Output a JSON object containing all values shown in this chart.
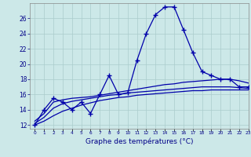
{
  "xlabel": "Graphe des températures (°C)",
  "background_color": "#cce8e8",
  "grid_color": "#aacccc",
  "line_color": "#0000aa",
  "hours": [
    0,
    1,
    2,
    3,
    4,
    5,
    6,
    7,
    8,
    9,
    10,
    11,
    12,
    13,
    14,
    15,
    16,
    17,
    18,
    19,
    20,
    21,
    22,
    23
  ],
  "temp_main": [
    12,
    14,
    15.5,
    15,
    14,
    15,
    13.5,
    16,
    18.5,
    16,
    16.2,
    20.5,
    24,
    26.5,
    27.5,
    27.5,
    24.5,
    21.5,
    19,
    18.5,
    18,
    18,
    17,
    17
  ],
  "temp_smooth1": [
    12.5,
    13.5,
    15.0,
    15.3,
    15.5,
    15.6,
    15.7,
    15.9,
    16.1,
    16.3,
    16.5,
    16.7,
    16.9,
    17.1,
    17.3,
    17.4,
    17.6,
    17.7,
    17.8,
    17.9,
    18.0,
    18.0,
    17.8,
    17.5
  ],
  "temp_smooth2": [
    12.2,
    13.0,
    14.2,
    14.8,
    15.1,
    15.3,
    15.5,
    15.7,
    15.9,
    16.0,
    16.2,
    16.3,
    16.4,
    16.5,
    16.6,
    16.7,
    16.8,
    16.9,
    17.0,
    17.0,
    17.0,
    17.0,
    16.9,
    16.8
  ],
  "temp_smooth3": [
    12.0,
    12.5,
    13.2,
    13.8,
    14.2,
    14.6,
    14.9,
    15.2,
    15.4,
    15.6,
    15.7,
    15.9,
    16.0,
    16.1,
    16.2,
    16.3,
    16.4,
    16.5,
    16.5,
    16.6,
    16.6,
    16.6,
    16.6,
    16.6
  ],
  "ylim": [
    11.5,
    28
  ],
  "yticks": [
    12,
    14,
    16,
    18,
    20,
    22,
    24,
    26
  ],
  "xlim": [
    -0.5,
    23
  ]
}
